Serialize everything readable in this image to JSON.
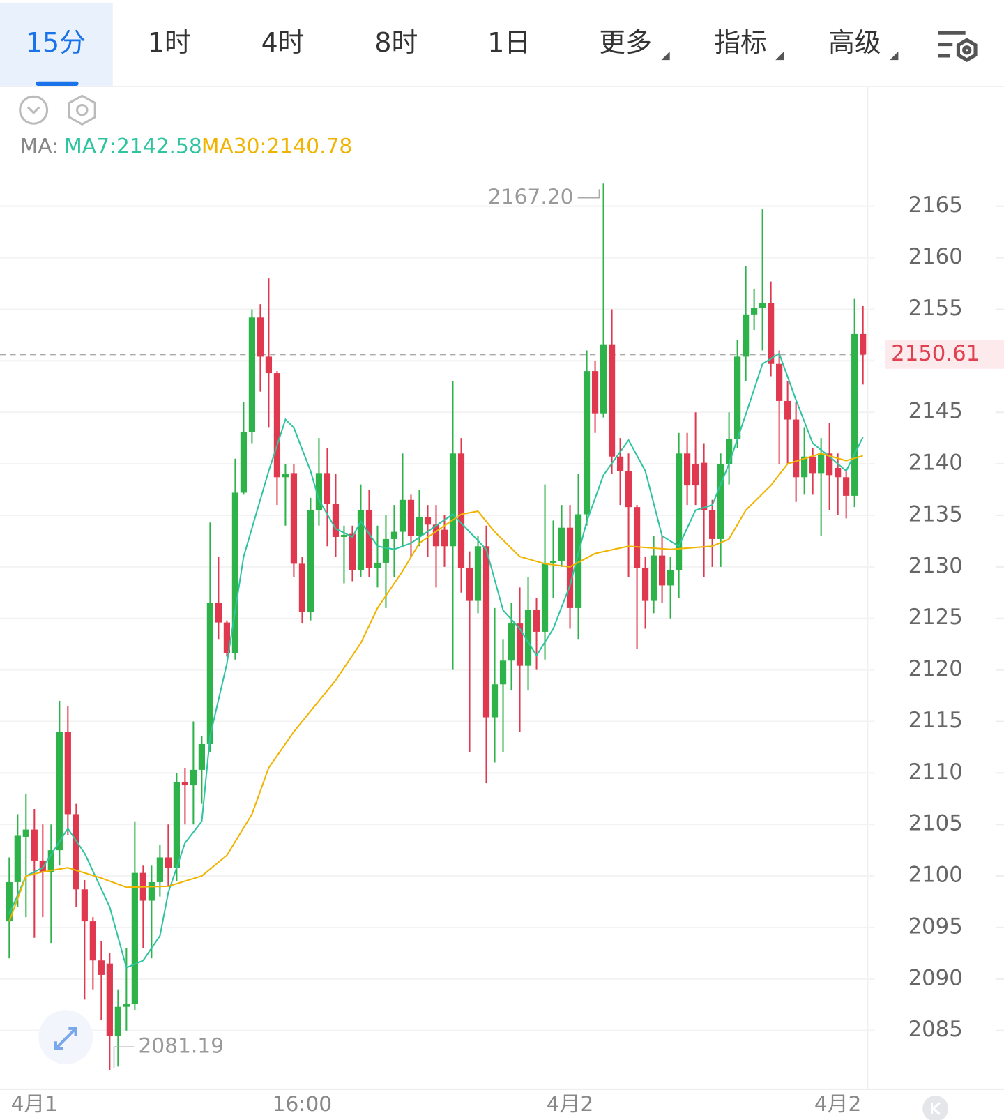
{
  "tabs": [
    "15分",
    "1时",
    "4时",
    "8时",
    "1日",
    "更多",
    "指标",
    "高级"
  ],
  "chart_data": {
    "type": "candlestick",
    "ma_legend": {
      "label": "MA:",
      "ma7": "MA7:2142.58",
      "ma30": "MA30:2140.78"
    },
    "up_color": "#2db34a",
    "down_color": "#e0394f",
    "ylim": [
      2079.3,
      2176
    ],
    "yticks": [
      2085,
      2090,
      2095,
      2100,
      2105,
      2110,
      2115,
      2120,
      2125,
      2130,
      2135,
      2140,
      2145,
      2150,
      2155,
      2160,
      2165
    ],
    "grid": true,
    "last_price": 2150.61,
    "max_label": {
      "value": 2167.2,
      "label": "2167.20"
    },
    "min_label": 2081.19,
    "categories": [
      null,
      null,
      null,
      "4月1",
      null,
      null,
      null,
      null,
      null,
      null,
      null,
      null,
      null,
      null,
      null,
      null,
      null,
      null,
      null,
      null,
      null,
      null,
      null,
      null,
      null,
      null,
      null,
      null,
      null,
      null,
      null,
      null,
      null,
      null,
      null,
      "16:00",
      null,
      null,
      null,
      null,
      null,
      null,
      null,
      null,
      null,
      null,
      null,
      null,
      null,
      null,
      null,
      null,
      null,
      null,
      null,
      null,
      null,
      null,
      null,
      null,
      null,
      null,
      null,
      null,
      null,
      null,
      null,
      "4月2",
      null,
      null,
      null,
      null,
      null,
      null,
      null,
      null,
      null,
      null,
      null,
      null,
      null,
      null,
      null,
      null,
      null,
      null,
      null,
      null,
      null,
      null,
      null,
      null,
      null,
      null,
      null,
      null,
      null,
      null,
      null,
      "4月2",
      null,
      null,
      null
    ],
    "ohlc": [
      [
        2095.6,
        2101.8,
        2092,
        2099.4
      ],
      [
        2099.4,
        2106,
        2097,
        2103.9
      ],
      [
        2103.8,
        2108,
        2096,
        2104.5
      ],
      [
        2104.5,
        2106.5,
        2094,
        2101.5
      ],
      [
        2101.5,
        2105,
        2096,
        2100.4
      ],
      [
        2100.4,
        2105,
        2093.5,
        2102.5
      ],
      [
        2102.5,
        2117,
        2101,
        2114
      ],
      [
        2114,
        2116.5,
        2104,
        2106
      ],
      [
        2106,
        2107,
        2097,
        2098.7
      ],
      [
        2098.7,
        2099.6,
        2088,
        2095.6
      ],
      [
        2095.6,
        2096,
        2089,
        2091.8
      ],
      [
        2091.8,
        2093.7,
        2086,
        2090.4
      ],
      [
        2091.5,
        2092.5,
        2081.19,
        2084.5
      ],
      [
        2084.5,
        2089,
        2081.5,
        2087.3
      ],
      [
        2087.3,
        2093,
        2085,
        2087.6
      ],
      [
        2087.6,
        2105.3,
        2087,
        2100.3
      ],
      [
        2100.3,
        2101,
        2093,
        2097.6
      ],
      [
        2097.6,
        2101,
        2092,
        2099.4
      ],
      [
        2099.4,
        2103,
        2098,
        2101.8
      ],
      [
        2101.8,
        2105,
        2099,
        2100.8
      ],
      [
        2100.8,
        2110,
        2099.5,
        2109.1
      ],
      [
        2109.1,
        2110.5,
        2105,
        2108.8
      ],
      [
        2108.8,
        2115,
        2105,
        2110.3
      ],
      [
        2110.3,
        2113.6,
        2107,
        2112.8
      ],
      [
        2112.8,
        2134.3,
        2112,
        2126.5
      ],
      [
        2126.5,
        2131,
        2123,
        2124.6
      ],
      [
        2124.6,
        2124.8,
        2121.3,
        2121.6
      ],
      [
        2121.6,
        2140.5,
        2121,
        2137.2
      ],
      [
        2137.2,
        2146,
        2137,
        2143.1
      ],
      [
        2143.1,
        2155,
        2142,
        2154.2
      ],
      [
        2154.2,
        2155.5,
        2147,
        2150.4
      ],
      [
        2150.4,
        2158,
        2143.5,
        2148.8
      ],
      [
        2148.8,
        2149,
        2136,
        2138.7
      ],
      [
        2138.7,
        2140,
        2134,
        2139
      ],
      [
        2139.1,
        2140,
        2129,
        2130.3
      ],
      [
        2130.3,
        2131,
        2124.5,
        2125.6
      ],
      [
        2125.6,
        2136.7,
        2124.8,
        2135.5
      ],
      [
        2135.5,
        2142.5,
        2134,
        2139.1
      ],
      [
        2139.1,
        2141.5,
        2132,
        2136.1
      ],
      [
        2136.1,
        2139,
        2131,
        2132.9
      ],
      [
        2132.9,
        2134,
        2128.4,
        2133.1
      ],
      [
        2133.2,
        2134,
        2128.6,
        2129.7
      ],
      [
        2129.7,
        2138,
        2129,
        2135.5
      ],
      [
        2135.5,
        2137.5,
        2129,
        2129.9
      ],
      [
        2129.9,
        2134,
        2128,
        2130.4
      ],
      [
        2130.4,
        2135,
        2126,
        2132.7
      ],
      [
        2132.7,
        2136,
        2129,
        2133.4
      ],
      [
        2133.4,
        2141,
        2132,
        2136.5
      ],
      [
        2136.5,
        2137,
        2131,
        2133
      ],
      [
        2133,
        2137.5,
        2132,
        2134.8
      ],
      [
        2134.8,
        2136,
        2131,
        2134.1
      ],
      [
        2134.1,
        2136,
        2128,
        2132
      ],
      [
        2133.6,
        2135,
        2130,
        2132
      ],
      [
        2132,
        2148,
        2120,
        2141
      ],
      [
        2141,
        2142.5,
        2127.5,
        2129.9
      ],
      [
        2129.9,
        2131.5,
        2112,
        2126.7
      ],
      [
        2126.7,
        2133,
        2125.5,
        2132
      ],
      [
        2132,
        2134,
        2109,
        2115.4
      ],
      [
        2115.4,
        2126,
        2111,
        2118.6
      ],
      [
        2118.6,
        2123,
        2112,
        2120.9
      ],
      [
        2120.9,
        2126.5,
        2118,
        2124.5
      ],
      [
        2124.5,
        2128,
        2114,
        2120.4
      ],
      [
        2120.4,
        2129,
        2118,
        2125.8
      ],
      [
        2125.8,
        2127,
        2120,
        2123.7
      ],
      [
        2123.7,
        2138,
        2121,
        2130.4
      ],
      [
        2130.4,
        2134.5,
        2127,
        2130.6
      ],
      [
        2130.6,
        2136,
        2130,
        2133.8
      ],
      [
        2133.8,
        2136,
        2124,
        2126
      ],
      [
        2126,
        2139,
        2123,
        2135.1
      ],
      [
        2135.1,
        2151,
        2134,
        2149
      ],
      [
        2149,
        2150,
        2143,
        2144.9
      ],
      [
        2144.9,
        2167.2,
        2144.5,
        2151.6
      ],
      [
        2151.6,
        2155,
        2139,
        2140.7
      ],
      [
        2140.7,
        2142.5,
        2136,
        2139.3
      ],
      [
        2139.3,
        2141,
        2129,
        2135.8
      ],
      [
        2135.8,
        2136,
        2122,
        2129.9
      ],
      [
        2129.9,
        2131,
        2124,
        2126.7
      ],
      [
        2126.7,
        2133,
        2125.5,
        2131.1
      ],
      [
        2131.1,
        2133,
        2126.5,
        2128.2
      ],
      [
        2128.2,
        2131,
        2125,
        2129.7
      ],
      [
        2129.7,
        2143,
        2127,
        2141
      ],
      [
        2141,
        2143,
        2136,
        2137.9
      ],
      [
        2140,
        2145,
        2136,
        2137.9
      ],
      [
        2140.1,
        2142,
        2129,
        2135.5
      ],
      [
        2135.5,
        2136.5,
        2130,
        2132.7
      ],
      [
        2132.7,
        2141,
        2130,
        2140
      ],
      [
        2140,
        2145,
        2138,
        2142.4
      ],
      [
        2142.4,
        2152,
        2141.5,
        2150.4
      ],
      [
        2150.4,
        2159.2,
        2148,
        2154.5
      ],
      [
        2154.5,
        2157,
        2153,
        2155.1
      ],
      [
        2155.1,
        2164.7,
        2151,
        2155.6
      ],
      [
        2155.6,
        2157.7,
        2148.5,
        2149.7
      ],
      [
        2149.7,
        2151,
        2140,
        2146.1
      ],
      [
        2146.1,
        2148,
        2140,
        2144.3
      ],
      [
        2144.3,
        2146,
        2136.3,
        2138.7
      ],
      [
        2138.7,
        2143.5,
        2137,
        2140.7
      ],
      [
        2140.7,
        2141.5,
        2137,
        2139.1
      ],
      [
        2139.1,
        2142.5,
        2133,
        2141
      ],
      [
        2141,
        2144,
        2135.5,
        2138.9
      ],
      [
        2139.6,
        2141,
        2135,
        2138.7
      ],
      [
        2138.7,
        2139.5,
        2134.7,
        2136.9
      ],
      [
        2136.9,
        2156,
        2135.8,
        2152.6
      ],
      [
        2152.6,
        2155.3,
        2147.7,
        2150.61
      ]
    ],
    "ma_series": [
      {
        "color": "#2ec4a0",
        "x": [
          0,
          2,
          4,
          7,
          9,
          12,
          14,
          16,
          18,
          19,
          21,
          23,
          24,
          26,
          28,
          31,
          33,
          34,
          36,
          37,
          39,
          41,
          42,
          44,
          46,
          48,
          51,
          53,
          55,
          57,
          59,
          61,
          63,
          65,
          67,
          69,
          71,
          74,
          76,
          78,
          80,
          82,
          84,
          86,
          88,
          90,
          92,
          94,
          96,
          98,
          100,
          102
        ],
        "values": [
          2096.3,
          2100,
          2100.8,
          2104.6,
          2102.2,
          2097,
          2091.1,
          2091.8,
          2094.2,
          2098.4,
          2103.2,
          2105.3,
          2113.6,
          2120.6,
          2131,
          2139.3,
          2144.3,
          2143.5,
          2139.3,
          2136.5,
          2133.7,
          2132.9,
          2134.4,
          2132,
          2131.7,
          2132.3,
          2134,
          2135.1,
          2133.4,
          2131.7,
          2125.8,
          2124,
          2121.4,
          2124,
          2128.2,
          2134.4,
          2138.9,
          2142.3,
          2139.3,
          2133,
          2132,
          2135.5,
          2136,
          2140,
          2144.8,
          2149.7,
          2150.7,
          2146.2,
          2142,
          2140.7,
          2139.3,
          2142.58
        ]
      },
      {
        "color": "#f0b400",
        "x": [
          0,
          2,
          4,
          7,
          11,
          14,
          19,
          23,
          26,
          29,
          31,
          34,
          36,
          39,
          42,
          44,
          47,
          49,
          52,
          54,
          56,
          58,
          61,
          64,
          67,
          70,
          74,
          79,
          84,
          86,
          88,
          91,
          93,
          97,
          100,
          102
        ],
        "values": [
          2095.6,
          2100,
          2100.4,
          2100.8,
          2099.8,
          2098.9,
          2099,
          2100,
          2102,
          2106,
          2110.5,
          2114,
          2116,
          2119,
          2122.6,
          2126,
          2129.6,
          2132.3,
          2134,
          2135.1,
          2135.4,
          2133.4,
          2131,
          2130.3,
          2130,
          2131.3,
          2132,
          2131.7,
          2132,
          2132.7,
          2135.5,
          2137.9,
          2140,
          2141,
          2140.3,
          2140.78
        ]
      }
    ]
  }
}
